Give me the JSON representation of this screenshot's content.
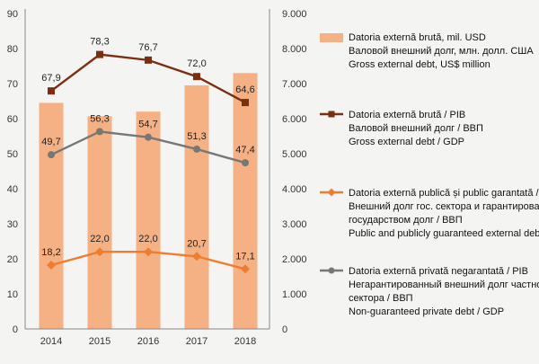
{
  "chart_data": {
    "type": "bar+line",
    "categories": [
      "2014",
      "2015",
      "2016",
      "2017",
      "2018"
    ],
    "bar_series": {
      "name": "Datoria externă brută, mil. USD",
      "name_ru": "Валовой внешний долг, млн. долл. США",
      "name_en": "Gross external debt, US$ million",
      "values": [
        6450,
        6070,
        6200,
        6950,
        7300
      ],
      "axis": "right",
      "color": "#f5b183"
    },
    "line_series": [
      {
        "name": "Datoria externă brută / PIB",
        "name_ru": "Валовой внешний долг / ВВП",
        "name_en": "Gross external debt / GDP",
        "values": [
          67.9,
          78.3,
          76.7,
          72.0,
          64.6
        ],
        "labels": [
          "67,9",
          "78,3",
          "76,7",
          "72,0",
          "64,6"
        ],
        "color": "#7b2e10",
        "marker": "square"
      },
      {
        "name": "Datoria externă privată negarantată / PIB",
        "name_ru": "Негарантированный внешний долг частного сектора / ВВП",
        "name_en": "Non-guaranteed private debt / GDP",
        "values": [
          49.7,
          56.3,
          54.7,
          51.3,
          47.4
        ],
        "labels": [
          "49,7",
          "56,3",
          "54,7",
          "51,3",
          "47,4"
        ],
        "color": "#777777",
        "marker": "circle"
      },
      {
        "name": "Datoria externă publică și public garantată / PIB",
        "name_ru": "Внешний долг гос. сектора и гарантированный государством долг / ВВП",
        "name_en": "Public and publicly guaranteed external debt / GDP",
        "values": [
          18.2,
          22.0,
          22.0,
          20.7,
          17.1
        ],
        "labels": [
          "18,2",
          "22,0",
          "22,0",
          "20,7",
          "17,1"
        ],
        "color": "#ee7d2f",
        "marker": "diamond"
      }
    ],
    "y_left": {
      "min": 0,
      "max": 90,
      "ticks": [
        0,
        10,
        20,
        30,
        40,
        50,
        60,
        70,
        80,
        90
      ]
    },
    "y_right": {
      "min": 0,
      "max": 9000,
      "ticks": [
        0,
        1000,
        2000,
        3000,
        4000,
        5000,
        6000,
        7000,
        8000,
        9000
      ],
      "tick_labels": [
        "0",
        "1.000",
        "2.000",
        "3.000",
        "4.000",
        "5.000",
        "6.000",
        "7.000",
        "8.000",
        "9.000"
      ]
    },
    "grid": false,
    "legend_position": "right"
  },
  "legend": [
    {
      "key": "bar",
      "lines": [
        "Datoria externă brută, mil. USD",
        "Валовой внешний долг, млн. долл. США",
        "Gross external debt, US$ million"
      ],
      "color": "#f5b183"
    },
    {
      "key": "gross",
      "lines": [
        "Datoria externă brută / PIB",
        "Валовой внешний долг / ВВП",
        "Gross external debt / GDP"
      ],
      "color": "#7b2e10"
    },
    {
      "key": "public",
      "lines": [
        "Datoria externă publică și public garantată / PIB",
        "Внешний долг гос. сектора и гарантированный",
        "государством долг / ВВП",
        "Public and publicly guaranteed external debt / GDP"
      ],
      "color": "#ee7d2f"
    },
    {
      "key": "private",
      "lines": [
        "Datoria externă privată negarantată / PIB",
        "Негарантированный внешний долг частного",
        "сектора / ВВП",
        "Non-guaranteed private debt / GDP"
      ],
      "color": "#777777"
    }
  ]
}
